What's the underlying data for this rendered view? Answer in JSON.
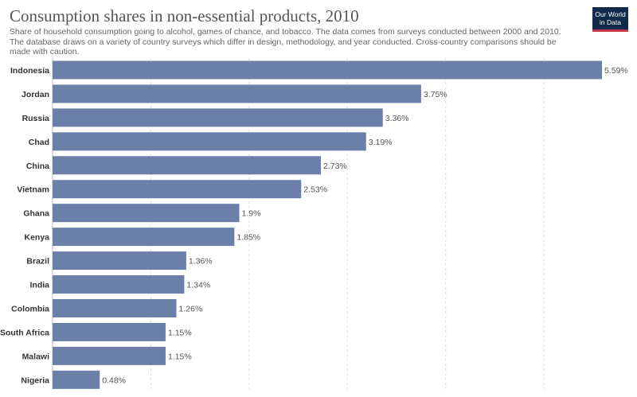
{
  "header": {
    "title": "Consumption shares in non-essential products, 2010",
    "subtitle": "Share of household consumption going to alcohol, games of chance, and tobacco. The data comes from surveys conducted between 2000 and 2010. The database draws on a variety of country surveys which differ in design, methodology, and year conducted. Cross-country comparisons should be made with caution."
  },
  "logo": {
    "line1": "Our World",
    "line2": "in Data"
  },
  "colors": {
    "bar": "#6b7fa8",
    "text": "#333333",
    "label": "#555555",
    "grid": "#dddddd"
  },
  "chart_data": {
    "type": "bar",
    "orientation": "horizontal",
    "categories": [
      "Indonesia",
      "Jordan",
      "Russia",
      "Chad",
      "China",
      "Vietnam",
      "Ghana",
      "Kenya",
      "Brazil",
      "India",
      "Colombia",
      "South Africa",
      "Malawi",
      "Nigeria"
    ],
    "values": [
      5.59,
      3.75,
      3.36,
      3.19,
      2.73,
      2.53,
      1.9,
      1.85,
      1.36,
      1.34,
      1.26,
      1.15,
      1.15,
      0.48
    ],
    "value_labels": [
      "5.59%",
      "3.75%",
      "3.36%",
      "3.19%",
      "2.73%",
      "2.53%",
      "1.9%",
      "1.85%",
      "1.36%",
      "1.34%",
      "1.26%",
      "1.15%",
      "1.15%",
      "0.48%"
    ],
    "unit": "%",
    "xlim": [
      0,
      5.59
    ],
    "gridlines": [
      0,
      1,
      2,
      3,
      4,
      5
    ],
    "grid": "vertical dashed",
    "title": "Consumption shares in non-essential products, 2010"
  }
}
